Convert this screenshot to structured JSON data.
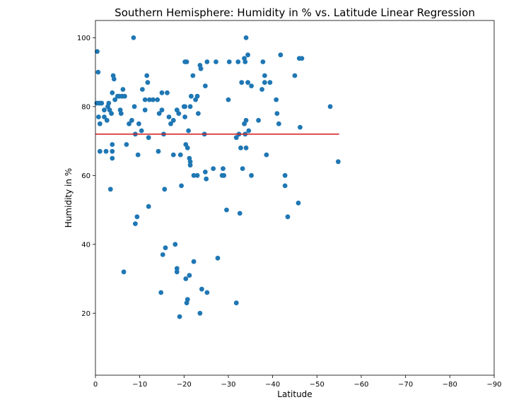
{
  "chart_data": {
    "type": "scatter",
    "title": "Southern Hemisphere: Humidity in % vs. Latitude Linear Regression",
    "xlabel": "Latitude",
    "ylabel": "Humidity in %",
    "xlim": [
      0,
      -90
    ],
    "ylim": [
      2,
      105
    ],
    "xticks": [
      0,
      -10,
      -20,
      -30,
      -40,
      -50,
      -60,
      -70,
      -80,
      -90
    ],
    "xtick_labels": [
      "0",
      "−10",
      "−20",
      "−30",
      "−40",
      "−50",
      "−60",
      "−70",
      "−80",
      "−90"
    ],
    "yticks": [
      20,
      40,
      60,
      80,
      100
    ],
    "ytick_labels": [
      "20",
      "40",
      "60",
      "80",
      "100"
    ],
    "grid": false,
    "colors": {
      "points": "#1f77b4",
      "regression": "#d62728"
    },
    "regression": {
      "x": [
        0,
        -55
      ],
      "y": [
        72,
        72
      ]
    },
    "points": [
      [
        -0.4,
        96
      ],
      [
        -0.6,
        90
      ],
      [
        -0.3,
        81
      ],
      [
        -0.8,
        81
      ],
      [
        -1.1,
        81
      ],
      [
        -0.7,
        77
      ],
      [
        -1.0,
        75
      ],
      [
        -1.0,
        67
      ],
      [
        -2.0,
        79
      ],
      [
        -2.0,
        77
      ],
      [
        -2.6,
        76
      ],
      [
        -2.8,
        80
      ],
      [
        -3.0,
        81
      ],
      [
        -3.2,
        79
      ],
      [
        -3.6,
        78
      ],
      [
        -3.8,
        84
      ],
      [
        -4.0,
        89
      ],
      [
        -4.2,
        88
      ],
      [
        -4.4,
        82
      ],
      [
        -5.0,
        83
      ],
      [
        -5.4,
        83
      ],
      [
        -5.6,
        79
      ],
      [
        -5.8,
        78
      ],
      [
        -6.0,
        83
      ],
      [
        -6.2,
        85
      ],
      [
        -6.6,
        83
      ],
      [
        -7.0,
        69
      ],
      [
        -7.6,
        75
      ],
      [
        -8.2,
        76
      ],
      [
        -8.8,
        80
      ],
      [
        -9.0,
        72
      ],
      [
        -8.6,
        100
      ],
      [
        -9.0,
        46
      ],
      [
        -9.4,
        48
      ],
      [
        -9.6,
        66
      ],
      [
        -9.8,
        75
      ],
      [
        -10.4,
        73
      ],
      [
        -10.6,
        85
      ],
      [
        -11.2,
        82
      ],
      [
        -11.2,
        79
      ],
      [
        -11.6,
        89
      ],
      [
        -11.8,
        87
      ],
      [
        -12.0,
        71
      ],
      [
        -12.2,
        82
      ],
      [
        -12.0,
        51
      ],
      [
        -13.0,
        82
      ],
      [
        -14.0,
        82
      ],
      [
        -14.2,
        67
      ],
      [
        -14.4,
        78
      ],
      [
        -15.0,
        84
      ],
      [
        -15.0,
        79
      ],
      [
        -15.4,
        72
      ],
      [
        -15.6,
        56
      ],
      [
        -16.2,
        84
      ],
      [
        -16.6,
        77
      ],
      [
        -17.0,
        75
      ],
      [
        -17.6,
        76
      ],
      [
        -17.6,
        66
      ],
      [
        -18.4,
        79
      ],
      [
        -18.8,
        78
      ],
      [
        -19.2,
        66
      ],
      [
        -19.4,
        57
      ],
      [
        -20.0,
        80
      ],
      [
        -20.2,
        80
      ],
      [
        -20.2,
        77
      ],
      [
        -20.2,
        93
      ],
      [
        -20.4,
        69
      ],
      [
        -20.6,
        93
      ],
      [
        -20.8,
        68
      ],
      [
        -21.0,
        73
      ],
      [
        -21.2,
        65
      ],
      [
        -21.4,
        64
      ],
      [
        -21.4,
        63
      ],
      [
        -21.6,
        83
      ],
      [
        -21.4,
        80
      ],
      [
        -22.0,
        89
      ],
      [
        -22.2,
        60
      ],
      [
        -22.6,
        82
      ],
      [
        -23.0,
        60
      ],
      [
        -23.0,
        83
      ],
      [
        -23.2,
        78
      ],
      [
        -23.6,
        92
      ],
      [
        -23.8,
        91
      ],
      [
        -24.6,
        72
      ],
      [
        -24.8,
        86
      ],
      [
        -24.8,
        61
      ],
      [
        -25.0,
        59
      ],
      [
        -25.2,
        93
      ],
      [
        -26.6,
        62
      ],
      [
        -27.2,
        93
      ],
      [
        -28.6,
        60
      ],
      [
        -28.8,
        62
      ],
      [
        -29.0,
        60
      ],
      [
        -29.6,
        50
      ],
      [
        -30.0,
        82
      ],
      [
        -30.2,
        93
      ],
      [
        -31.8,
        71
      ],
      [
        -32.2,
        93
      ],
      [
        -32.4,
        72
      ],
      [
        -32.6,
        49
      ],
      [
        -32.8,
        68
      ],
      [
        -33.0,
        87
      ],
      [
        -33.2,
        62
      ],
      [
        -33.6,
        94
      ],
      [
        -33.8,
        93
      ],
      [
        -33.6,
        75
      ],
      [
        -33.8,
        72
      ],
      [
        -34.0,
        100
      ],
      [
        -34.0,
        68
      ],
      [
        -34.0,
        76
      ],
      [
        -34.4,
        87
      ],
      [
        -34.4,
        95
      ],
      [
        -34.6,
        73
      ],
      [
        -35.2,
        86
      ],
      [
        -35.2,
        60
      ],
      [
        -36.8,
        76
      ],
      [
        -37.6,
        85
      ],
      [
        -37.8,
        93
      ],
      [
        -38.2,
        89
      ],
      [
        -38.2,
        87
      ],
      [
        -38.6,
        66
      ],
      [
        -39.4,
        87
      ],
      [
        -40.8,
        82
      ],
      [
        -41.0,
        78
      ],
      [
        -41.4,
        75
      ],
      [
        -41.8,
        95
      ],
      [
        -42.8,
        60
      ],
      [
        -42.8,
        57
      ],
      [
        -43.4,
        48
      ],
      [
        -45.0,
        89
      ],
      [
        -45.8,
        52
      ],
      [
        -46.0,
        94
      ],
      [
        -46.2,
        74
      ],
      [
        -46.6,
        94
      ],
      [
        -53.0,
        80
      ],
      [
        -54.8,
        64
      ],
      [
        -14.8,
        26
      ],
      [
        -15.2,
        37
      ],
      [
        -15.8,
        39
      ],
      [
        -18.0,
        40
      ],
      [
        -18.4,
        32
      ],
      [
        -18.4,
        33
      ],
      [
        -19.0,
        19
      ],
      [
        -20.4,
        30
      ],
      [
        -20.6,
        23
      ],
      [
        -20.8,
        24
      ],
      [
        -21.2,
        31
      ],
      [
        -22.2,
        35
      ],
      [
        -23.6,
        20
      ],
      [
        -24.0,
        27
      ],
      [
        -25.2,
        26
      ],
      [
        -27.6,
        36
      ],
      [
        -31.8,
        23
      ],
      [
        -6.4,
        32
      ],
      [
        -3.4,
        56
      ],
      [
        -3.8,
        65
      ],
      [
        -3.8,
        67
      ],
      [
        -3.8,
        69
      ],
      [
        -2.4,
        67
      ],
      [
        -1.4,
        81
      ]
    ]
  }
}
